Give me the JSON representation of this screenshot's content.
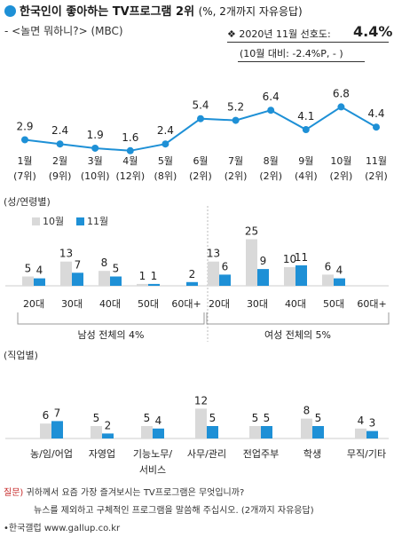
{
  "header": {
    "title": "한국인이 좋아하는 TV프로그램 2위",
    "title_paren": "(%, 2개까지 자유응답)",
    "subtitle": "- <놀면 뭐하니?> (MBC)",
    "pref_label": "❖ 2020년 11월 선호도:",
    "pref_value": "4.4%",
    "pref_note": "(10월 대비: -2.4%P,  - )"
  },
  "colors": {
    "accent": "#1e90d6",
    "grey_bar": "#d9d9d9",
    "line": "#1e90d6",
    "question": "#c62828"
  },
  "chart_data": [
    {
      "type": "line",
      "categories": [
        "1월",
        "2월",
        "3월",
        "4월",
        "5월",
        "6월",
        "7월",
        "8월",
        "9월",
        "10월",
        "11월"
      ],
      "ranks": [
        "(7위)",
        "(9위)",
        "(10위)",
        "(12위)",
        "(8위)",
        "(2위)",
        "(2위)",
        "(2위)",
        "(4위)",
        "(2위)",
        "(2위)"
      ],
      "values": [
        2.9,
        2.4,
        1.9,
        1.6,
        2.4,
        5.4,
        5.2,
        6.4,
        4.1,
        6.8,
        4.4
      ],
      "value_labels": [
        "2.9",
        "2.4",
        "1.9",
        "1.6",
        "2.4",
        "5.4",
        "5.2",
        "6.4",
        "4.1",
        "6.8",
        "4.4"
      ],
      "ylim": [
        0,
        8
      ]
    },
    {
      "type": "bar",
      "section_label": "(성/연령별)",
      "legend": [
        "10월",
        "11월"
      ],
      "groups": [
        {
          "caption": "남성 전체의 4%",
          "categories": [
            "20대",
            "30대",
            "40대",
            "50대",
            "60대+"
          ],
          "series": [
            {
              "name": "10월",
              "values": [
                5,
                13,
                8,
                1,
                null
              ],
              "labels": [
                "5",
                "13",
                "8",
                "1",
                ""
              ]
            },
            {
              "name": "11월",
              "values": [
                4,
                7,
                5,
                1,
                2
              ],
              "labels": [
                "4",
                "7",
                "5",
                "1",
                "2"
              ]
            }
          ]
        },
        {
          "caption": "여성 전체의 5%",
          "categories": [
            "20대",
            "30대",
            "40대",
            "50대",
            "60대+"
          ],
          "series": [
            {
              "name": "10월",
              "values": [
                13,
                25,
                10,
                6,
                null
              ],
              "labels": [
                "13",
                "25",
                "10",
                "6",
                ""
              ]
            },
            {
              "name": "11월",
              "values": [
                6,
                9,
                11,
                4,
                null
              ],
              "labels": [
                "6",
                "9",
                "11",
                "4",
                ""
              ]
            }
          ]
        }
      ],
      "ylim": [
        0,
        27
      ]
    },
    {
      "type": "bar",
      "section_label": "(직업별)",
      "categories": [
        "농/임/어업",
        "자영업",
        "기능노무/\n서비스",
        "사무/관리",
        "전업주부",
        "학생",
        "무직/기타"
      ],
      "series": [
        {
          "name": "10월",
          "values": [
            6,
            5,
            5,
            12,
            5,
            8,
            4
          ],
          "labels": [
            "6",
            "5",
            "5",
            "12",
            "5",
            "8",
            "4"
          ]
        },
        {
          "name": "11월",
          "values": [
            7,
            2,
            4,
            5,
            5,
            5,
            3
          ],
          "labels": [
            "7",
            "2",
            "4",
            "5",
            "5",
            "5",
            "3"
          ]
        }
      ],
      "ylim": [
        0,
        14
      ]
    }
  ],
  "footer": {
    "q_label": "질문)",
    "q_line1": "귀하께서 요즘 가장 즐겨보시는 TV프로그램은 무엇입니까?",
    "q_line2": "뉴스를 제외하고 구체적인 프로그램을 말씀해 주십시오. (2개까지 자유응답)",
    "source": "•한국갤럽 www.gallup.co.kr"
  }
}
